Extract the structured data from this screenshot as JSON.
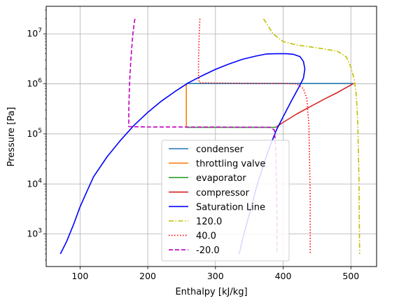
{
  "chart_data": {
    "type": "line",
    "title": "",
    "xlabel": "Enthalpy [kJ/kg]",
    "ylabel": "Pressure [Pa]",
    "xlim": [
      50,
      538
    ],
    "ylim_log10": [
      2.35,
      7.55
    ],
    "yscale": "log",
    "grid": true,
    "legend_position": "lower-center",
    "x_ticks": [
      {
        "value": 100,
        "label": "100"
      },
      {
        "value": 200,
        "label": "200"
      },
      {
        "value": 300,
        "label": "300"
      },
      {
        "value": 400,
        "label": "400"
      },
      {
        "value": 500,
        "label": "500"
      }
    ],
    "y_ticks": [
      {
        "log": 3,
        "base": "10",
        "exp": "3"
      },
      {
        "log": 4,
        "base": "10",
        "exp": "4"
      },
      {
        "log": 5,
        "base": "10",
        "exp": "5"
      },
      {
        "log": 6,
        "base": "10",
        "exp": "6"
      },
      {
        "log": 7,
        "base": "10",
        "exp": "7"
      }
    ],
    "series": [
      {
        "name": "condenser",
        "color": "#1f77b4",
        "dash": "solid",
        "points": [
          [
            257,
            1020000.0
          ],
          [
            504,
            1020000.0
          ]
        ]
      },
      {
        "name": "throttling valve",
        "color": "#ff7f0e",
        "dash": "solid",
        "points": [
          [
            257,
            1020000.0
          ],
          [
            257,
            135000.0
          ]
        ]
      },
      {
        "name": "evaporator",
        "color": "#2ca02c",
        "dash": "solid",
        "points": [
          [
            257,
            135000.0
          ],
          [
            389,
            135000.0
          ]
        ]
      },
      {
        "name": "compressor",
        "color": "#d62728",
        "dash": "solid",
        "points": [
          [
            389,
            135000.0
          ],
          [
            400,
            170000.0
          ],
          [
            420,
            250000.0
          ],
          [
            440,
            350000.0
          ],
          [
            460,
            490000.0
          ],
          [
            480,
            670000.0
          ],
          [
            504,
            1020000.0
          ]
        ]
      },
      {
        "name": "Saturation Line",
        "color": "#0000ff",
        "dash": "solid",
        "points": [
          [
            71,
            400
          ],
          [
            80,
            700
          ],
          [
            90,
            1500
          ],
          [
            100,
            3500
          ],
          [
            110,
            7000
          ],
          [
            120,
            14000.0
          ],
          [
            140,
            35000.0
          ],
          [
            160,
            75000.0
          ],
          [
            180,
            150000.0
          ],
          [
            200,
            270000.0
          ],
          [
            220,
            450000.0
          ],
          [
            240,
            700000.0
          ],
          [
            260,
            1050000.0
          ],
          [
            280,
            1450000.0
          ],
          [
            300,
            1950000.0
          ],
          [
            320,
            2500000.0
          ],
          [
            340,
            3100000.0
          ],
          [
            360,
            3600000.0
          ],
          [
            375,
            3950000.0
          ],
          [
            390,
            4000000.0
          ],
          [
            405,
            4000000.0
          ],
          [
            415,
            3900000.0
          ],
          [
            425,
            3500000.0
          ],
          [
            430,
            2800000.0
          ],
          [
            432,
            2000000.0
          ],
          [
            430,
            1300000.0
          ],
          [
            423,
            850000.0
          ],
          [
            412,
            450000.0
          ],
          [
            400,
            220000.0
          ],
          [
            390,
            120000.0
          ],
          [
            380,
            55000.0
          ],
          [
            370,
            22000.0
          ],
          [
            360,
            8000
          ],
          [
            350,
            2500
          ],
          [
            342,
            1000
          ],
          [
            335,
            400
          ]
        ]
      },
      {
        "name": "120.0",
        "color": "#bfbf00",
        "dash": "dashdot",
        "points": [
          [
            371,
            20000000.0
          ],
          [
            385,
            10000000.0
          ],
          [
            400,
            7000000.0
          ],
          [
            420,
            6000000.0
          ],
          [
            440,
            5500000.0
          ],
          [
            460,
            5000000.0
          ],
          [
            480,
            4500000.0
          ],
          [
            493,
            3500000.0
          ],
          [
            500,
            2200000.0
          ],
          [
            505,
            1200000.0
          ],
          [
            508,
            600000.0
          ],
          [
            510,
            200000.0
          ],
          [
            511,
            50000.0
          ],
          [
            512,
            10000.0
          ],
          [
            512.5,
            2000
          ],
          [
            513,
            400
          ]
        ]
      },
      {
        "name": "40.0",
        "color": "#ff0000",
        "dash": "dotted",
        "points": [
          [
            277,
            20000000.0
          ],
          [
            276,
            10000000.0
          ],
          [
            275,
            3000000.0
          ],
          [
            275,
            1500000.0
          ],
          [
            276,
            1050000.0
          ],
          [
            300,
            1040000.0
          ],
          [
            350,
            1030000.0
          ],
          [
            400,
            1020000.0
          ],
          [
            420,
            1000000.0
          ],
          [
            430,
            800000.0
          ],
          [
            435,
            500000.0
          ],
          [
            438,
            150000.0
          ],
          [
            439,
            30000.0
          ],
          [
            440,
            5000
          ],
          [
            440,
            400
          ]
        ]
      },
      {
        "name": "-20.0",
        "color": "#bf00bf",
        "dash": "dashed",
        "points": [
          [
            181,
            20000000.0
          ],
          [
            180,
            16000000.0
          ],
          [
            178,
            10000000.0
          ],
          [
            175,
            3000000.0
          ],
          [
            173,
            1000000.0
          ],
          [
            172,
            300000.0
          ],
          [
            172,
            140000.0
          ],
          [
            200,
            138000.0
          ],
          [
            300,
            137000.0
          ],
          [
            380,
            136000.0
          ],
          [
            387,
            120000.0
          ],
          [
            389,
            50000.0
          ],
          [
            390,
            10000.0
          ],
          [
            391,
            2000
          ],
          [
            391,
            400
          ]
        ]
      }
    ]
  }
}
